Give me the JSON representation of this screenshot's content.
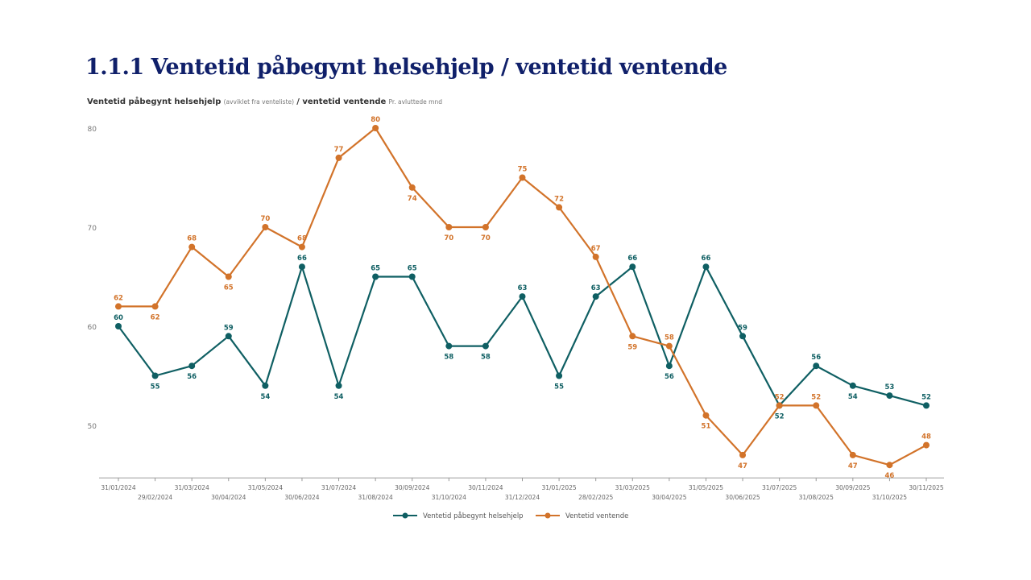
{
  "page_title": "1.1.1  Ventetid påbegynt helsehjelp / ventetid ventende",
  "chart_data": {
    "type": "line",
    "title_parts": {
      "main1": "Ventetid påbegynt helsehjelp",
      "note1": "(avviklet fra venteliste)",
      "main2": "/ ventetid ventende",
      "note2": "Pr. avluttede mnd"
    },
    "categories": [
      "31/01/2024",
      "29/02/2024",
      "31/03/2024",
      "30/04/2024",
      "31/05/2024",
      "30/06/2024",
      "31/07/2024",
      "31/08/2024",
      "30/09/2024",
      "31/10/2024",
      "30/11/2024",
      "31/12/2024",
      "31/01/2025",
      "28/02/2025",
      "31/03/2025",
      "30/04/2025",
      "31/05/2025",
      "30/06/2025",
      "31/07/2025",
      "31/08/2025",
      "30/09/2025",
      "31/10/2025",
      "30/11/2025"
    ],
    "series": [
      {
        "name": "Ventetid påbegynt helsehjelp",
        "color": "#0f5f63",
        "values": [
          60,
          55,
          56,
          59,
          54,
          66,
          54,
          65,
          65,
          58,
          58,
          63,
          55,
          63,
          66,
          56,
          66,
          59,
          52,
          56,
          54,
          53,
          52
        ]
      },
      {
        "name": "Ventetid ventende",
        "color": "#d2732a",
        "values": [
          62,
          62,
          68,
          65,
          70,
          68,
          77,
          80,
          74,
          70,
          70,
          75,
          72,
          67,
          59,
          58,
          51,
          47,
          52,
          52,
          47,
          46,
          48
        ]
      }
    ],
    "yticks": [
      50,
      60,
      70,
      80
    ],
    "ylim": [
      44.7,
      80.5
    ],
    "grid": false,
    "legend": "bottom-center"
  }
}
